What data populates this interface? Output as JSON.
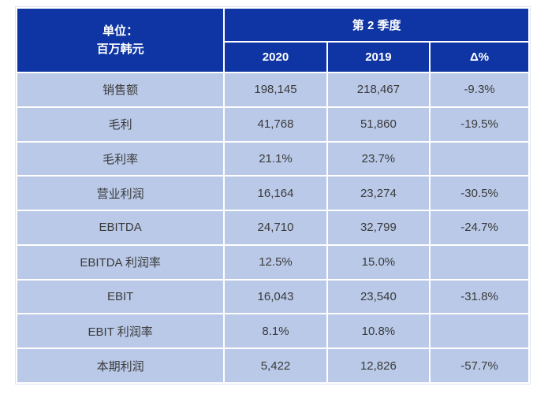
{
  "chart_data": {
    "type": "table",
    "title": "第 2 季度",
    "unit_header": {
      "line1": "单位：",
      "line2": "百万韩元"
    },
    "columns": [
      "2020",
      "2019",
      "Δ%"
    ],
    "rows": [
      {
        "label": "销售额",
        "values": [
          "198,145",
          "218,467",
          "-9.3%"
        ]
      },
      {
        "label": "毛利",
        "values": [
          "41,768",
          "51,860",
          "-19.5%"
        ]
      },
      {
        "label": "毛利率",
        "values": [
          "21.1%",
          "23.7%",
          ""
        ]
      },
      {
        "label": "营业利润",
        "values": [
          "16,164",
          "23,274",
          "-30.5%"
        ]
      },
      {
        "label": "EBITDA",
        "values": [
          "24,710",
          "32,799",
          "-24.7%"
        ]
      },
      {
        "label": "EBITDA 利润率",
        "values": [
          "12.5%",
          "15.0%",
          ""
        ]
      },
      {
        "label": "EBIT",
        "values": [
          "16,043",
          "23,540",
          "-31.8%"
        ]
      },
      {
        "label": "EBIT 利润率",
        "values": [
          "8.1%",
          "10.8%",
          ""
        ]
      },
      {
        "label": "本期利润",
        "values": [
          "5,422",
          "12,826",
          "-57.7%"
        ]
      }
    ],
    "colors": {
      "header_bg": "#0E35A3",
      "row_bg": "#B9C9E7",
      "header_text": "#FFFFFF",
      "body_text": "#3B3B3B",
      "divider": "#FFFFFF"
    }
  }
}
